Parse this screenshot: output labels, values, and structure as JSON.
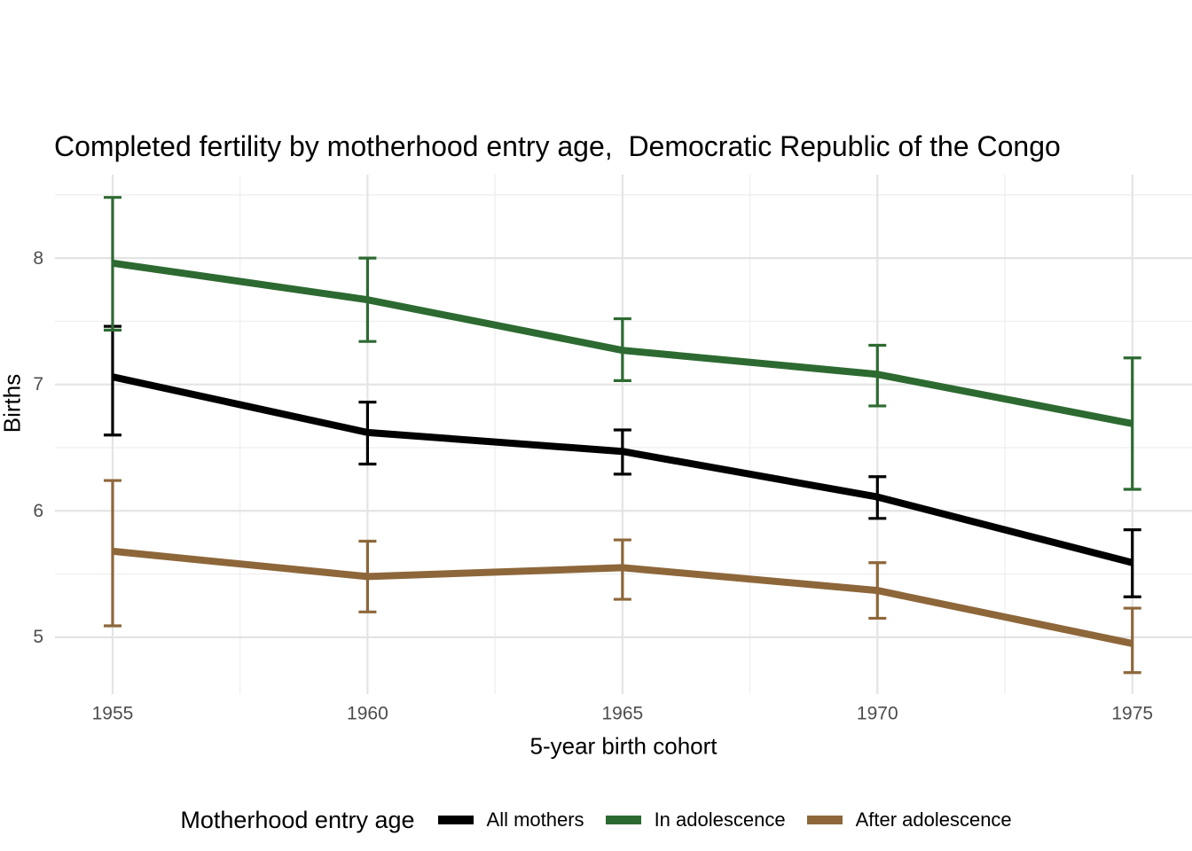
{
  "chart_data": {
    "type": "line",
    "title": "Completed fertility by motherhood entry age,  Democratic Republic of the Congo",
    "xlabel": "5-year birth cohort",
    "ylabel": "Births",
    "legend_title": "Motherhood entry age",
    "legend_position": "bottom",
    "grid": "on",
    "grid_major_color": "#e4e4e4",
    "grid_minor_color": "#efefef",
    "tick_label_color": "#4d4d4d",
    "x": [
      1955,
      1960,
      1965,
      1970,
      1975
    ],
    "x_tick_labels": [
      "1955",
      "1960",
      "1965",
      "1970",
      "1975"
    ],
    "x_minor": [
      1957.5,
      1962.5,
      1967.5,
      1972.5
    ],
    "y_ticks": [
      5,
      6,
      7,
      8
    ],
    "y_tick_labels": [
      "5",
      "6",
      "7",
      "8"
    ],
    "y_minor": [
      5.5,
      6.5,
      7.5,
      8.5
    ],
    "xlim": [
      1953.87,
      1976.17
    ],
    "ylim": [
      4.55,
      8.66
    ],
    "error_bars": true,
    "series": [
      {
        "name": "All mothers",
        "color": "#000000",
        "values": [
          7.06,
          6.62,
          6.47,
          6.11,
          5.59
        ],
        "lower": [
          6.6,
          6.37,
          6.29,
          5.94,
          5.32
        ],
        "upper": [
          7.46,
          6.86,
          6.64,
          6.27,
          5.85
        ]
      },
      {
        "name": "In adolescence",
        "color": "#2d6a31",
        "values": [
          7.96,
          7.67,
          7.27,
          7.08,
          6.69
        ],
        "lower": [
          7.43,
          7.34,
          7.03,
          6.83,
          6.17
        ],
        "upper": [
          8.48,
          8.0,
          7.52,
          7.31,
          7.21
        ]
      },
      {
        "name": "After adolescence",
        "color": "#8d673a",
        "values": [
          5.68,
          5.48,
          5.55,
          5.37,
          4.95
        ],
        "lower": [
          5.09,
          5.2,
          5.3,
          5.15,
          4.72
        ],
        "upper": [
          6.24,
          5.76,
          5.77,
          5.59,
          5.23
        ]
      }
    ]
  }
}
